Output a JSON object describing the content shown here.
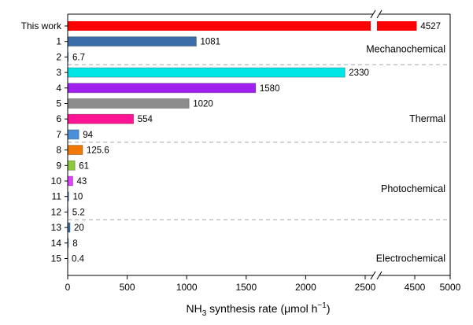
{
  "chart_data": {
    "type": "bar",
    "orientation": "horizontal",
    "categories": [
      "This work",
      "1",
      "2",
      "3",
      "4",
      "5",
      "6",
      "7",
      "8",
      "9",
      "10",
      "11",
      "12",
      "13",
      "14",
      "15"
    ],
    "values": [
      4527,
      1081,
      6.7,
      2330,
      1580,
      1020,
      554,
      94,
      125.6,
      61,
      43,
      10,
      5.2,
      20,
      8,
      0.4
    ],
    "value_labels": [
      "4527",
      "1081",
      "6.7",
      "2330",
      "1580",
      "1020",
      "554",
      "94",
      "125.6",
      "61",
      "43",
      "10",
      "5.2",
      "20",
      "8",
      "0.4"
    ],
    "bar_colors": [
      "#ff0000",
      "#3b6ea8",
      "#3b6ea8",
      "#00e5e5",
      "#a020f0",
      "#8c8c8c",
      "#ff1493",
      "#4a90d9",
      "#f07800",
      "#8cc83c",
      "#e040fb",
      "#3b6ea8",
      "#3b6ea8",
      "#3b6ea8",
      "#3b6ea8",
      "#3b6ea8"
    ],
    "groups": [
      {
        "label": "Mechanochemical",
        "from": 0,
        "to": 2
      },
      {
        "label": "Thermal",
        "from": 3,
        "to": 7
      },
      {
        "label": "Photochemical",
        "from": 8,
        "to": 12
      },
      {
        "label": "Electrochemical",
        "from": 13,
        "to": 15
      }
    ],
    "xaxis": {
      "segments": [
        {
          "range": [
            0,
            2600
          ],
          "ticks": [
            0,
            500,
            1000,
            1500,
            2000,
            2500
          ],
          "tick_labels": [
            "0",
            "500",
            "1000",
            "1500",
            "2000",
            "2500"
          ]
        },
        {
          "range": [
            4000,
            5000
          ],
          "ticks": [
            4500,
            5000
          ],
          "tick_labels": [
            "4500",
            "5000"
          ]
        }
      ],
      "break": true
    },
    "xlabel_parts": {
      "pre": "NH",
      "sub": "3",
      "mid": " synthesis rate (μmol h",
      "sup": "−1",
      "post": ")"
    },
    "ylabel": "",
    "grid": false,
    "group_separators": "dashed"
  }
}
